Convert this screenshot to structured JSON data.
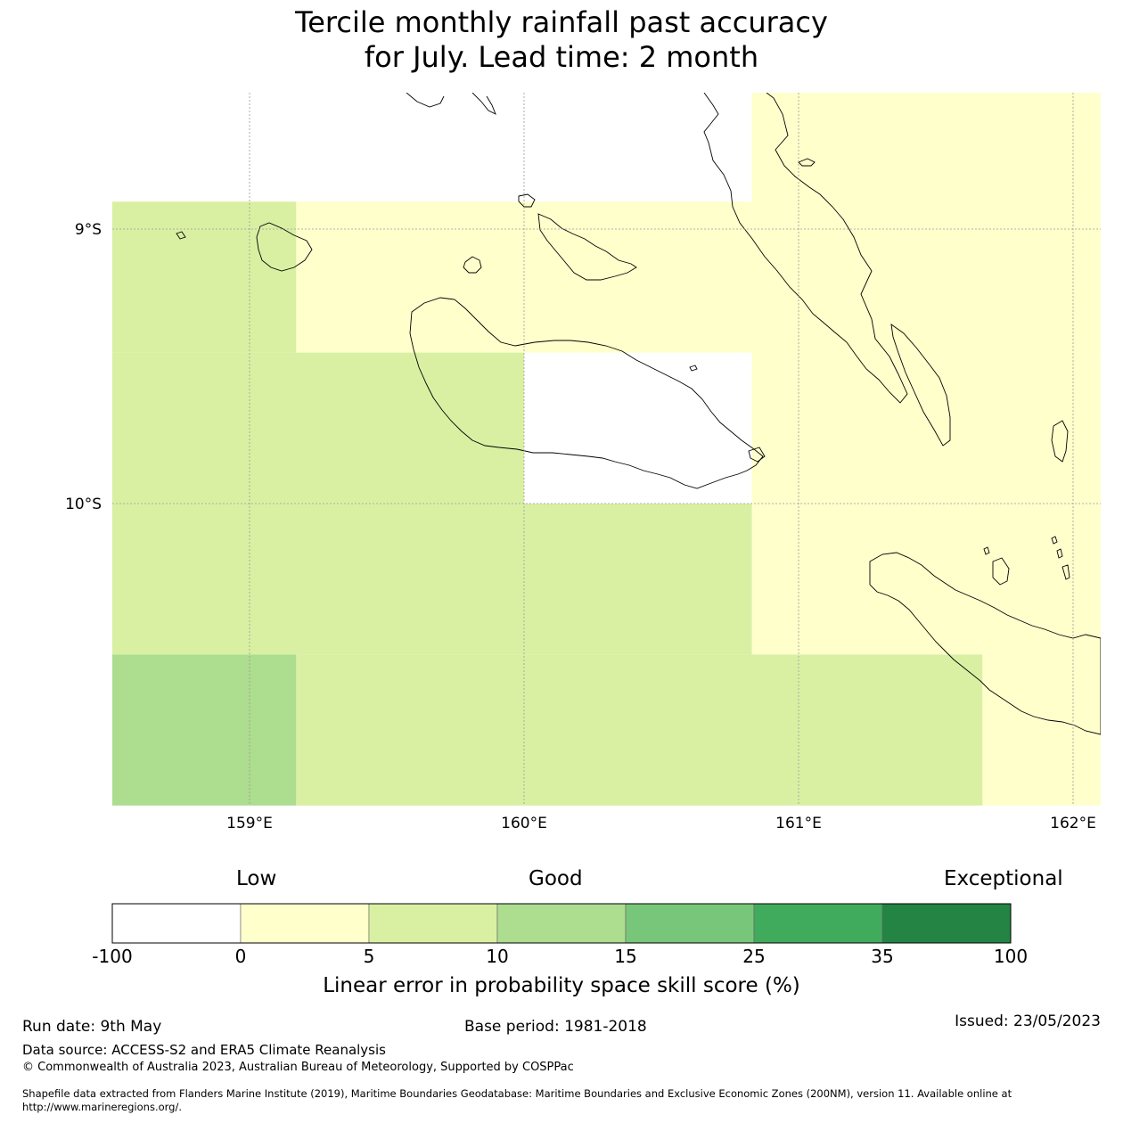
{
  "title": {
    "line1": "Tercile monthly rainfall past accuracy",
    "line2": "for July. Lead time: 2 month"
  },
  "map": {
    "lon_range": [
      158.5,
      162.1
    ],
    "lat_range": [
      -9.0,
      -10.8
    ],
    "lon_ticks": [
      {
        "value": 159,
        "label": "159°E"
      },
      {
        "value": 160,
        "label": "160°E"
      },
      {
        "value": 161,
        "label": "161°E"
      },
      {
        "value": 162,
        "label": "162°E"
      }
    ],
    "lat_ticks": [
      {
        "value": -9,
        "label": "9°S"
      },
      {
        "value": -10,
        "label": "10°S"
      }
    ],
    "cells": [
      {
        "lon": [
          158.5,
          159.17
        ],
        "lat": [
          -8.9,
          -9.45
        ],
        "cls": "5-10"
      },
      {
        "lon": [
          159.17,
          160.83
        ],
        "lat": [
          -8.9,
          -9.45
        ],
        "cls": "0-5"
      },
      {
        "lon": [
          160.83,
          161.67
        ],
        "lat": [
          -8.5,
          -9.45
        ],
        "cls": "0-5"
      },
      {
        "lon": [
          161.67,
          162.1
        ],
        "lat": [
          -8.5,
          -9.45
        ],
        "cls": "0-5"
      },
      {
        "lon": [
          158.5,
          160.0
        ],
        "lat": [
          -9.45,
          -10.0
        ],
        "cls": "5-10"
      },
      {
        "lon": [
          160.83,
          162.1
        ],
        "lat": [
          -9.45,
          -10.0
        ],
        "cls": "0-5"
      },
      {
        "lon": [
          158.5,
          160.83
        ],
        "lat": [
          -10.0,
          -10.55
        ],
        "cls": "5-10"
      },
      {
        "lon": [
          160.83,
          162.1
        ],
        "lat": [
          -10.0,
          -10.55
        ],
        "cls": "0-5"
      },
      {
        "lon": [
          158.5,
          159.17
        ],
        "lat": [
          -10.55,
          -11.1
        ],
        "cls": "10-15"
      },
      {
        "lon": [
          159.17,
          161.67
        ],
        "lat": [
          -10.55,
          -11.1
        ],
        "cls": "5-10"
      },
      {
        "lon": [
          161.67,
          162.1
        ],
        "lat": [
          -10.55,
          -11.1
        ],
        "cls": "0-5"
      }
    ]
  },
  "legend": {
    "low": "Low",
    "good": "Good",
    "exceptional": "Exceptional",
    "bins": [
      {
        "color": "#ffffff"
      },
      {
        "color": "#ffffcc"
      },
      {
        "color": "#d9f0a3"
      },
      {
        "color": "#addd8e"
      },
      {
        "color": "#78c679"
      },
      {
        "color": "#41ab5d"
      },
      {
        "color": "#238443"
      }
    ],
    "ticks": [
      "-100",
      "0",
      "5",
      "10",
      "15",
      "25",
      "35",
      "100"
    ],
    "label": "Linear error in probability space skill score (%)"
  },
  "class_colors": {
    "0-5": "#ffffcc",
    "5-10": "#d9f0a3",
    "10-15": "#addd8e"
  },
  "footer": {
    "run_date": "Run date: 9th May",
    "base_period": "Base period: 1981-2018",
    "issued": "Issued: 23/05/2023",
    "data_source": "Data source: ACCESS-S2 and ERA5 Climate Reanalysis",
    "copyright": "© Commonwealth of Australia 2023, Australian Bureau of Meteorology, Supported by COSPPac",
    "shapefile_line1": "Shapefile data extracted from Flanders Marine Institute (2019), Maritime Boundaries Geodatabase: Maritime Boundaries and Exclusive Economic Zones (200NM), version 11. Available online at",
    "shapefile_line2": "http://www.marineregions.org/."
  }
}
